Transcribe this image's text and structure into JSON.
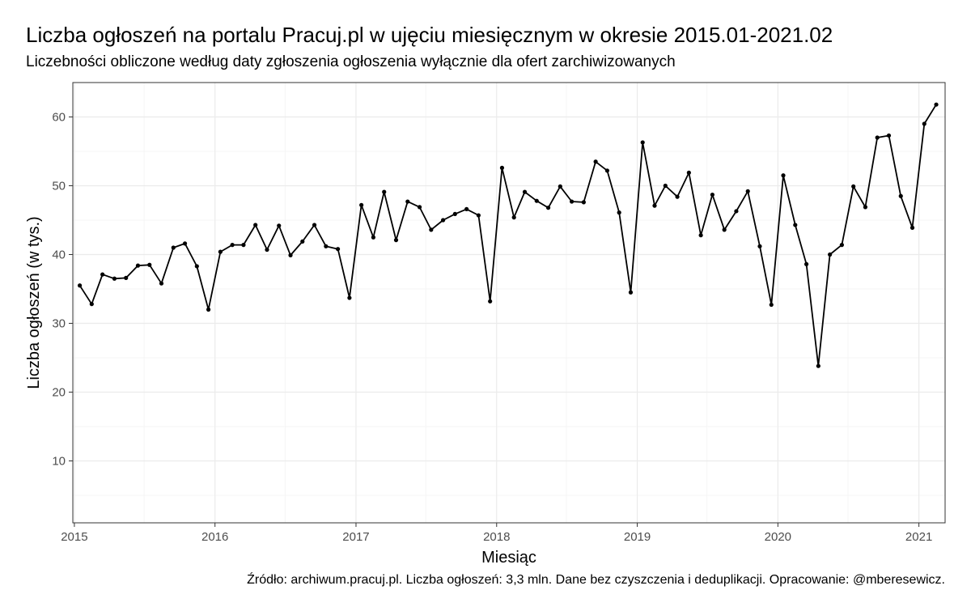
{
  "chart_data": {
    "type": "line",
    "title": "Liczba ogłoszeń na portalu Pracuj.pl w ujęciu miesięcznym w okresie 2015.01-2021.02",
    "subtitle": "Liczebności obliczone według daty zgłoszenia ogłoszenia wyłącznie dla ofert zarchiwizowanych",
    "caption": "Źródło: archiwum.pracuj.pl. Liczba ogłoszeń: 3,3 mln. Dane bez czyszczenia i deduplikacji. Opracowanie: @mberesewicz.",
    "xlabel": "Miesiąc",
    "ylabel": "Liczba ogłoszeń (w tys.)",
    "x_ticks": [
      "2015",
      "2016",
      "2017",
      "2018",
      "2019",
      "2020",
      "2021"
    ],
    "y_ticks": [
      10,
      20,
      30,
      40,
      50,
      60
    ],
    "xlim": [
      "2014-12-28",
      "2021-03-10"
    ],
    "ylim": [
      1,
      65
    ],
    "grid": true,
    "line_color": "#000000",
    "x": [
      "2015-01-15",
      "2015-02-15",
      "2015-03-15",
      "2015-04-15",
      "2015-05-15",
      "2015-06-15",
      "2015-07-15",
      "2015-08-15",
      "2015-09-15",
      "2015-10-15",
      "2015-11-15",
      "2015-12-15",
      "2016-01-15",
      "2016-02-15",
      "2016-03-15",
      "2016-04-15",
      "2016-05-15",
      "2016-06-15",
      "2016-07-15",
      "2016-08-15",
      "2016-09-15",
      "2016-10-15",
      "2016-11-15",
      "2016-12-15",
      "2017-01-15",
      "2017-02-15",
      "2017-03-15",
      "2017-04-15",
      "2017-05-15",
      "2017-06-15",
      "2017-07-15",
      "2017-08-15",
      "2017-09-15",
      "2017-10-15",
      "2017-11-15",
      "2017-12-15",
      "2018-01-15",
      "2018-02-15",
      "2018-03-15",
      "2018-04-15",
      "2018-05-15",
      "2018-06-15",
      "2018-07-15",
      "2018-08-15",
      "2018-09-15",
      "2018-10-15",
      "2018-11-15",
      "2018-12-15",
      "2019-01-15",
      "2019-02-15",
      "2019-03-15",
      "2019-04-15",
      "2019-05-15",
      "2019-06-15",
      "2019-07-15",
      "2019-08-15",
      "2019-09-15",
      "2019-10-15",
      "2019-11-15",
      "2019-12-15",
      "2020-01-15",
      "2020-02-15",
      "2020-03-15",
      "2020-04-15",
      "2020-05-15",
      "2020-06-15",
      "2020-07-15",
      "2020-08-15",
      "2020-09-15",
      "2020-10-15",
      "2020-11-15",
      "2020-12-15",
      "2021-01-15",
      "2021-02-15"
    ],
    "series": [
      {
        "values": [
          35.5,
          32.8,
          37.1,
          36.5,
          36.6,
          38.4,
          38.5,
          35.8,
          41.0,
          41.6,
          38.3,
          32.0,
          40.4,
          41.4,
          41.4,
          44.3,
          40.7,
          44.2,
          39.9,
          41.9,
          44.3,
          41.2,
          40.8,
          33.7,
          47.2,
          42.5,
          49.1,
          42.1,
          47.7,
          46.9,
          43.6,
          45.0,
          45.9,
          46.6,
          45.7,
          33.2,
          52.6,
          45.4,
          49.1,
          47.8,
          46.8,
          49.9,
          47.7,
          47.6,
          53.5,
          52.2,
          46.1,
          34.5,
          56.3,
          47.1,
          50.0,
          48.4,
          51.9,
          42.8,
          48.7,
          43.6,
          46.3,
          49.2,
          41.2,
          32.7,
          51.5,
          44.3,
          38.6,
          23.8,
          40.0,
          41.4,
          49.9,
          46.9,
          57.0,
          57.3,
          48.5,
          43.9,
          59.0,
          61.8
        ]
      }
    ]
  }
}
